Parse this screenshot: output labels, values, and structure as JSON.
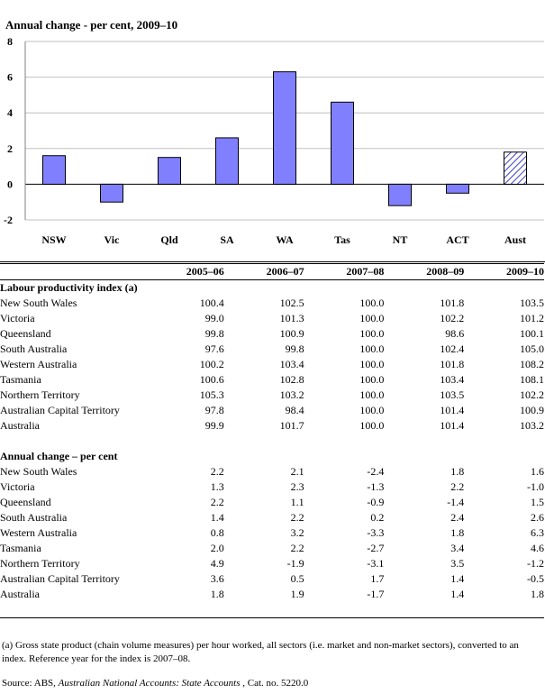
{
  "chart_data": {
    "type": "bar",
    "title": "Annual change - per cent, 2009–10",
    "categories": [
      "NSW",
      "Vic",
      "Qld",
      "SA",
      "WA",
      "Tas",
      "NT",
      "ACT",
      "Aust"
    ],
    "values": [
      1.6,
      -1.0,
      1.5,
      2.6,
      6.3,
      4.6,
      -1.2,
      -0.5,
      1.8
    ],
    "highlight_category": "Aust",
    "ylim": [
      -2,
      8
    ],
    "yticks": [
      "-2",
      "0",
      "2",
      "4",
      "6",
      "8"
    ],
    "grid": true,
    "colors": {
      "bar": "#8080ff",
      "bar_outline": "#000000",
      "hatched": "#ffffff",
      "grid": "#c0c0c0"
    }
  },
  "table": {
    "years": [
      "2005–06",
      "2006–07",
      "2007–08",
      "2008–09",
      "2009–10"
    ],
    "sections": [
      {
        "title": "Labour productivity index (a)",
        "rows": [
          {
            "label": "New South Wales",
            "values": [
              "100.4",
              "102.5",
              "100.0",
              "101.8",
              "103.5"
            ]
          },
          {
            "label": "Victoria",
            "values": [
              "99.0",
              "101.3",
              "100.0",
              "102.2",
              "101.2"
            ]
          },
          {
            "label": "Queensland",
            "values": [
              "99.8",
              "100.9",
              "100.0",
              "98.6",
              "100.1"
            ]
          },
          {
            "label": "South Australia",
            "values": [
              "97.6",
              "99.8",
              "100.0",
              "102.4",
              "105.0"
            ]
          },
          {
            "label": "Western Australia",
            "values": [
              "100.2",
              "103.4",
              "100.0",
              "101.8",
              "108.2"
            ]
          },
          {
            "label": "Tasmania",
            "values": [
              "100.6",
              "102.8",
              "100.0",
              "103.4",
              "108.1"
            ]
          },
          {
            "label": "Northern Territory",
            "values": [
              "105.3",
              "103.2",
              "100.0",
              "103.5",
              "102.2"
            ]
          },
          {
            "label": "Australian Capital Territory",
            "values": [
              "97.8",
              "98.4",
              "100.0",
              "101.4",
              "100.9"
            ]
          },
          {
            "label": "Australia",
            "values": [
              "99.9",
              "101.7",
              "100.0",
              "101.4",
              "103.2"
            ]
          }
        ]
      },
      {
        "title": "Annual change – per cent",
        "rows": [
          {
            "label": "New South Wales",
            "values": [
              "2.2",
              "2.1",
              "-2.4",
              "1.8",
              "1.6"
            ]
          },
          {
            "label": "Victoria",
            "values": [
              "1.3",
              "2.3",
              "-1.3",
              "2.2",
              "-1.0"
            ]
          },
          {
            "label": "Queensland",
            "values": [
              "2.2",
              "1.1",
              "-0.9",
              "-1.4",
              "1.5"
            ]
          },
          {
            "label": "South Australia",
            "values": [
              "1.4",
              "2.2",
              "0.2",
              "2.4",
              "2.6"
            ]
          },
          {
            "label": "Western Australia",
            "values": [
              "0.8",
              "3.2",
              "-3.3",
              "1.8",
              "6.3"
            ]
          },
          {
            "label": "Tasmania",
            "values": [
              "2.0",
              "2.2",
              "-2.7",
              "3.4",
              "4.6"
            ]
          },
          {
            "label": "Northern Territory",
            "values": [
              "4.9",
              "-1.9",
              "-3.1",
              "3.5",
              "-1.2"
            ]
          },
          {
            "label": "Australian Capital Territory",
            "values": [
              "3.6",
              "0.5",
              "1.7",
              "1.4",
              "-0.5"
            ]
          },
          {
            "label": "Australia",
            "values": [
              "1.8",
              "1.9",
              "-1.7",
              "1.4",
              "1.8"
            ]
          }
        ]
      }
    ]
  },
  "footnote": "(a) Gross state product (chain volume measures) per hour worked, all sectors (i.e. market and non-market sectors), converted to an index. Reference year for the index is 2007–08.",
  "source": {
    "prefix": "Source: ABS, ",
    "title": "Australian National Accounts: State Accounts",
    "suffix": " , Cat. no. 5220.0"
  }
}
